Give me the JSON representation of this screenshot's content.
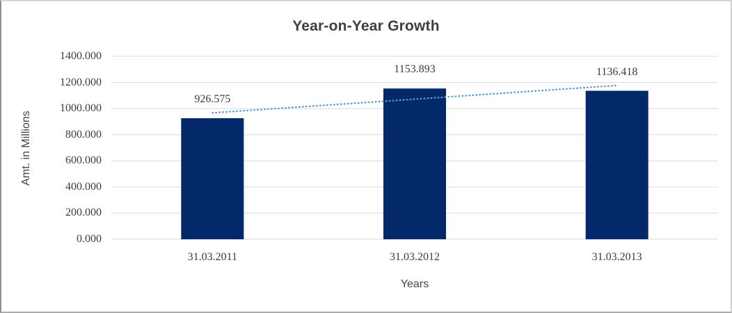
{
  "chart_data": {
    "type": "bar",
    "title": "Year-on-Year Growth",
    "xlabel": "Years",
    "ylabel": "Amt. in Millions",
    "categories": [
      "31.03.2011",
      "31.03.2012",
      "31.03.2013"
    ],
    "values": [
      926.575,
      1153.893,
      1136.418
    ],
    "data_labels": [
      "926.575",
      "1153.893",
      "1136.418"
    ],
    "y_ticks": [
      "0.000",
      "200.000",
      "400.000",
      "600.000",
      "800.000",
      "1000.000",
      "1200.000",
      "1400.000"
    ],
    "ylim": [
      0,
      1400
    ],
    "grid": true,
    "legend_position": "none",
    "series_name": "Amt. in Millions",
    "trendline": {
      "type": "linear",
      "style": "dotted"
    },
    "colors": {
      "bar": "#04296a",
      "trendline": "#5b9bd5",
      "gridline": "#d9d9d9",
      "title_text": "#3f3f3f",
      "axis_title_text": "#444444",
      "tick_text": "#3b3b3b",
      "background": "#ffffff"
    }
  }
}
